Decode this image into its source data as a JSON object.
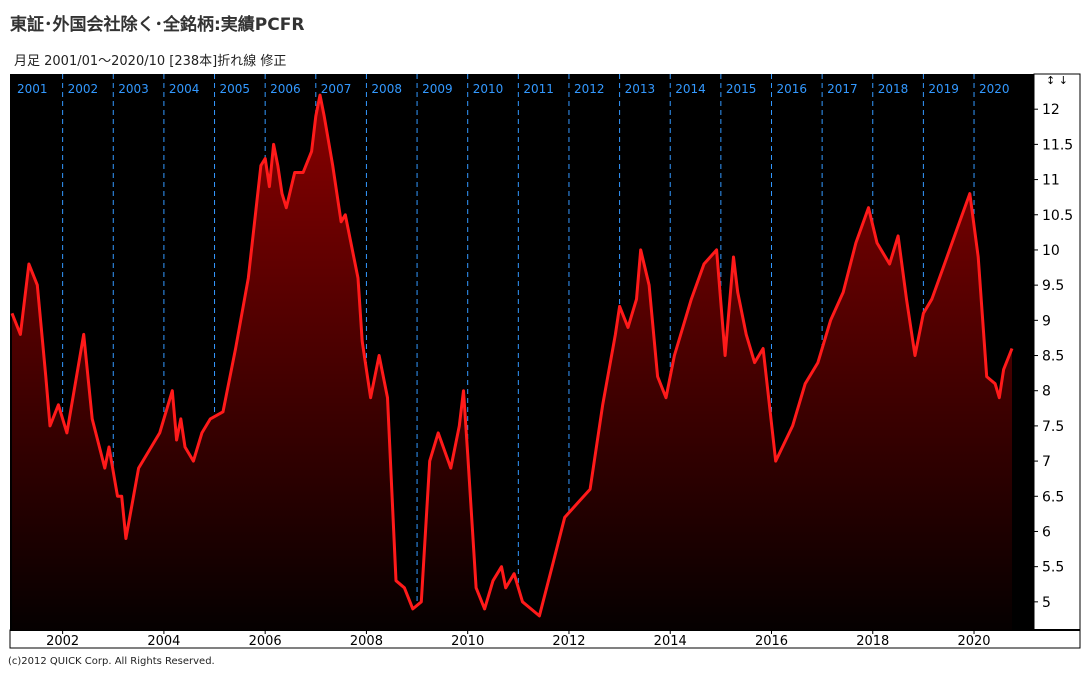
{
  "title": "東証･外国会社除く･全銘柄:実績PCFR",
  "subtitle": "月足  2001/01～2020/10 [238本]折れ線 修正",
  "copyright": "(c)2012 QUICK Corp. All Rights Reserved.",
  "scale_arrows": "↕ ↓",
  "colors": {
    "line": "#ff1a1a",
    "fill_top": "#8a0000",
    "fill_bottom": "#050000",
    "background": "#000000",
    "grid": "#3399ff",
    "year_label": "#3399ff"
  },
  "chart_data": {
    "type": "area",
    "title": "東証･外国会社除く･全銘柄:実績PCFR",
    "xlabel": "",
    "ylabel": "",
    "x_start": "2001-01",
    "x_end": "2020-10",
    "ylim": [
      4.6,
      12.5
    ],
    "y_ticks": [
      "5",
      "5.5",
      "6",
      "6.5",
      "7",
      "7.5",
      "8",
      "8.5",
      "9",
      "9.5",
      "10",
      "10.5",
      "11",
      "11.5",
      "12"
    ],
    "x_ticks": [
      "2002",
      "2004",
      "2006",
      "2008",
      "2010",
      "2012",
      "2014",
      "2016",
      "2018",
      "2020"
    ],
    "year_labels": [
      "2001",
      "2002",
      "2003",
      "2004",
      "2005",
      "2006",
      "2007",
      "2008",
      "2009",
      "2010",
      "2011",
      "2012",
      "2013",
      "2014",
      "2015",
      "2016",
      "2017",
      "2018",
      "2019",
      "2020"
    ],
    "grid": "vertical dashed at year starts",
    "series": [
      {
        "name": "",
        "points": [
          [
            "2001-01",
            9.1
          ],
          [
            "2001-03",
            8.8
          ],
          [
            "2001-05",
            9.8
          ],
          [
            "2001-07",
            9.5
          ],
          [
            "2001-09",
            8.2
          ],
          [
            "2001-10",
            7.5
          ],
          [
            "2001-12",
            7.8
          ],
          [
            "2002-02",
            7.4
          ],
          [
            "2002-06",
            8.8
          ],
          [
            "2002-08",
            7.6
          ],
          [
            "2002-11",
            6.9
          ],
          [
            "2002-12",
            7.2
          ],
          [
            "2003-02",
            6.5
          ],
          [
            "2003-03",
            6.5
          ],
          [
            "2003-04",
            5.9
          ],
          [
            "2003-07",
            6.9
          ],
          [
            "2003-09",
            7.1
          ],
          [
            "2003-12",
            7.4
          ],
          [
            "2004-03",
            8.0
          ],
          [
            "2004-04",
            7.3
          ],
          [
            "2004-05",
            7.6
          ],
          [
            "2004-06",
            7.2
          ],
          [
            "2004-08",
            7.0
          ],
          [
            "2004-10",
            7.4
          ],
          [
            "2004-12",
            7.6
          ],
          [
            "2005-03",
            7.7
          ],
          [
            "2005-06",
            8.6
          ],
          [
            "2005-09",
            9.6
          ],
          [
            "2005-12",
            11.2
          ],
          [
            "2006-01",
            11.3
          ],
          [
            "2006-02",
            10.9
          ],
          [
            "2006-03",
            11.5
          ],
          [
            "2006-04",
            11.2
          ],
          [
            "2006-05",
            10.8
          ],
          [
            "2006-06",
            10.6
          ],
          [
            "2006-08",
            11.1
          ],
          [
            "2006-10",
            11.1
          ],
          [
            "2006-12",
            11.4
          ],
          [
            "2007-01",
            11.9
          ],
          [
            "2007-02",
            12.2
          ],
          [
            "2007-03",
            11.9
          ],
          [
            "2007-05",
            11.2
          ],
          [
            "2007-07",
            10.4
          ],
          [
            "2007-08",
            10.5
          ],
          [
            "2007-11",
            9.6
          ],
          [
            "2007-12",
            8.7
          ],
          [
            "2008-02",
            7.9
          ],
          [
            "2008-04",
            8.5
          ],
          [
            "2008-06",
            7.9
          ],
          [
            "2008-08",
            5.3
          ],
          [
            "2008-10",
            5.2
          ],
          [
            "2008-12",
            4.9
          ],
          [
            "2009-02",
            5.0
          ],
          [
            "2009-04",
            7.0
          ],
          [
            "2009-06",
            7.4
          ],
          [
            "2009-09",
            6.9
          ],
          [
            "2009-11",
            7.5
          ],
          [
            "2009-12",
            8.0
          ],
          [
            "2010-01",
            7.1
          ],
          [
            "2010-03",
            5.2
          ],
          [
            "2010-05",
            4.9
          ],
          [
            "2010-07",
            5.3
          ],
          [
            "2010-09",
            5.5
          ],
          [
            "2010-10",
            5.2
          ],
          [
            "2010-12",
            5.4
          ],
          [
            "2011-02",
            5.0
          ],
          [
            "2011-04",
            4.9
          ],
          [
            "2011-06",
            4.8
          ],
          [
            "2011-09",
            5.5
          ],
          [
            "2011-12",
            6.2
          ],
          [
            "2012-03",
            6.4
          ],
          [
            "2012-06",
            6.6
          ],
          [
            "2012-09",
            7.8
          ],
          [
            "2012-12",
            8.8
          ],
          [
            "2013-01",
            9.2
          ],
          [
            "2013-03",
            8.9
          ],
          [
            "2013-05",
            9.3
          ],
          [
            "2013-06",
            10.0
          ],
          [
            "2013-08",
            9.5
          ],
          [
            "2013-10",
            8.2
          ],
          [
            "2013-12",
            7.9
          ],
          [
            "2014-02",
            8.5
          ],
          [
            "2014-06",
            9.3
          ],
          [
            "2014-09",
            9.8
          ],
          [
            "2014-12",
            10.0
          ],
          [
            "2015-02",
            8.5
          ],
          [
            "2015-04",
            9.9
          ],
          [
            "2015-05",
            9.4
          ],
          [
            "2015-07",
            8.8
          ],
          [
            "2015-09",
            8.4
          ],
          [
            "2015-11",
            8.6
          ],
          [
            "2016-02",
            7.0
          ],
          [
            "2016-06",
            7.5
          ],
          [
            "2016-09",
            8.1
          ],
          [
            "2016-12",
            8.4
          ],
          [
            "2017-03",
            9.0
          ],
          [
            "2017-06",
            9.4
          ],
          [
            "2017-09",
            10.1
          ],
          [
            "2017-12",
            10.6
          ],
          [
            "2018-02",
            10.1
          ],
          [
            "2018-05",
            9.8
          ],
          [
            "2018-07",
            10.2
          ],
          [
            "2018-09",
            9.3
          ],
          [
            "2018-11",
            8.5
          ],
          [
            "2019-01",
            9.1
          ],
          [
            "2019-03",
            9.3
          ],
          [
            "2019-06",
            9.8
          ],
          [
            "2019-09",
            10.3
          ],
          [
            "2019-12",
            10.8
          ],
          [
            "2020-02",
            9.9
          ],
          [
            "2020-04",
            8.2
          ],
          [
            "2020-06",
            8.1
          ],
          [
            "2020-07",
            7.9
          ],
          [
            "2020-08",
            8.3
          ],
          [
            "2020-10",
            8.6
          ]
        ]
      }
    ]
  }
}
